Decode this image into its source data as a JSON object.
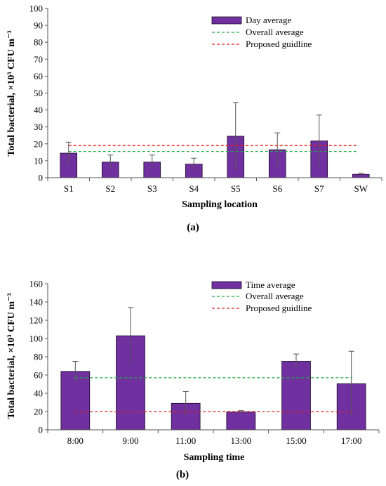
{
  "colors": {
    "bar": "#7030a0",
    "bar_edge": "#1a0a26",
    "overall": "#22a845",
    "guideline": "#e02020",
    "axis": "#555555",
    "error": "#555555"
  },
  "chart_data": [
    {
      "type": "bar",
      "caption": "(a)",
      "xlabel": "Sampling location",
      "ylabel": "Total bacterial, ×10³ CFU m⁻³",
      "ylim": [
        0,
        100
      ],
      "yticks": [
        0,
        10,
        20,
        30,
        40,
        50,
        60,
        70,
        80,
        90,
        100
      ],
      "grid": false,
      "legend_position": "top-right",
      "categories": [
        "S1",
        "S2",
        "S3",
        "S4",
        "S5",
        "S6",
        "S7",
        "SW"
      ],
      "series": [
        {
          "name": "Day average",
          "values": [
            14.5,
            9.2,
            9.2,
            8.0,
            24.5,
            16.5,
            21.7,
            2.0
          ],
          "error": [
            6.5,
            4.2,
            4.2,
            3.5,
            20.0,
            10.0,
            15.3,
            0.7
          ]
        }
      ],
      "lines": [
        {
          "name": "Overall average",
          "value": 15.5,
          "style": "dashed",
          "color_key": "overall",
          "from_category": 0
        },
        {
          "name": "Proposed guidline",
          "value": 19.0,
          "style": "dashed",
          "color_key": "guideline",
          "from_category": 0
        }
      ]
    },
    {
      "type": "bar",
      "caption": "(b)",
      "xlabel": "Sampling time",
      "ylabel": "Total bacterial, ×10³ CFU m⁻³",
      "ylim": [
        0,
        160
      ],
      "yticks": [
        0,
        20,
        40,
        60,
        80,
        100,
        120,
        140,
        160
      ],
      "grid": false,
      "legend_position": "top-right",
      "categories": [
        "8:00",
        "9:00",
        "11:00",
        "13:00",
        "15:00",
        "17:00"
      ],
      "series": [
        {
          "name": "Time average",
          "values": [
            64,
            103,
            29,
            19.5,
            75,
            50.5
          ],
          "error": [
            11,
            31,
            13,
            1.5,
            8,
            35.5
          ]
        }
      ],
      "lines": [
        {
          "name": "Overall average",
          "value": 57,
          "style": "dashed",
          "color_key": "overall",
          "from_category": 0
        },
        {
          "name": "Proposed guidline",
          "value": 20,
          "style": "dashed",
          "color_key": "guideline",
          "from_category": 0
        }
      ]
    }
  ]
}
